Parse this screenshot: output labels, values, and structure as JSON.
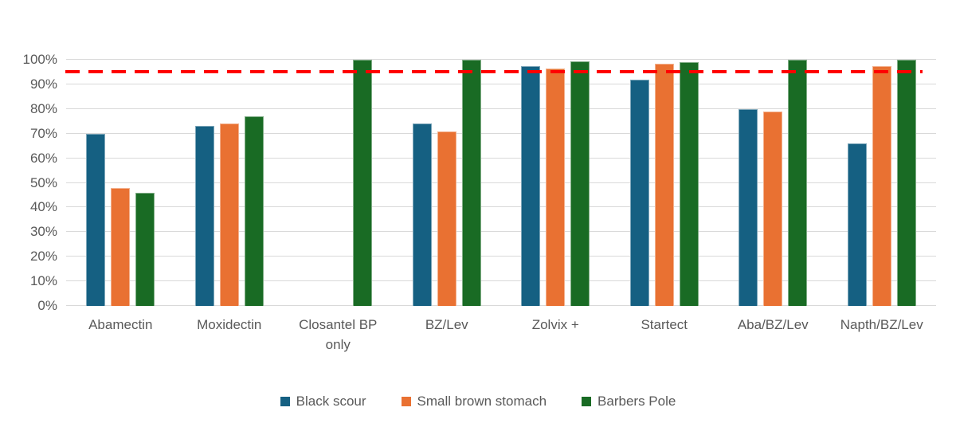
{
  "chart_data": {
    "type": "bar",
    "title": "",
    "categories": [
      "Abamectin",
      "Moxidectin",
      "Closantel BP only",
      "BZ/Lev",
      "Zolvix +",
      "Startect",
      "Aba/BZ/Lev",
      "Napth/BZ/Lev"
    ],
    "series": [
      {
        "name": "Black scour",
        "color": "#156082",
        "values": [
          70,
          73,
          null,
          74,
          97.5,
          92,
          80,
          66
        ]
      },
      {
        "name": "Small brown stomach",
        "color": "#E97132",
        "values": [
          48,
          74,
          null,
          71,
          96.5,
          98.5,
          79,
          97.5
        ]
      },
      {
        "name": "Barbers Pole",
        "color": "#196B24",
        "values": [
          46,
          77,
          100,
          100,
          99.5,
          99,
          100,
          100
        ]
      }
    ],
    "y_ticks": [
      "0%",
      "10%",
      "20%",
      "30%",
      "40%",
      "50%",
      "60%",
      "70%",
      "80%",
      "90%",
      "100%"
    ],
    "ylim": [
      0,
      100
    ],
    "xlabel": "",
    "ylabel": "",
    "grid": true,
    "legend_position": "bottom",
    "reference_line": {
      "value": 95,
      "color": "#FF0000",
      "style": "dashed"
    }
  },
  "colors": {
    "background": "#FFFFFF",
    "gridline": "#D9D9D9",
    "axis_text": "#595959",
    "reference": "#FF0000"
  }
}
